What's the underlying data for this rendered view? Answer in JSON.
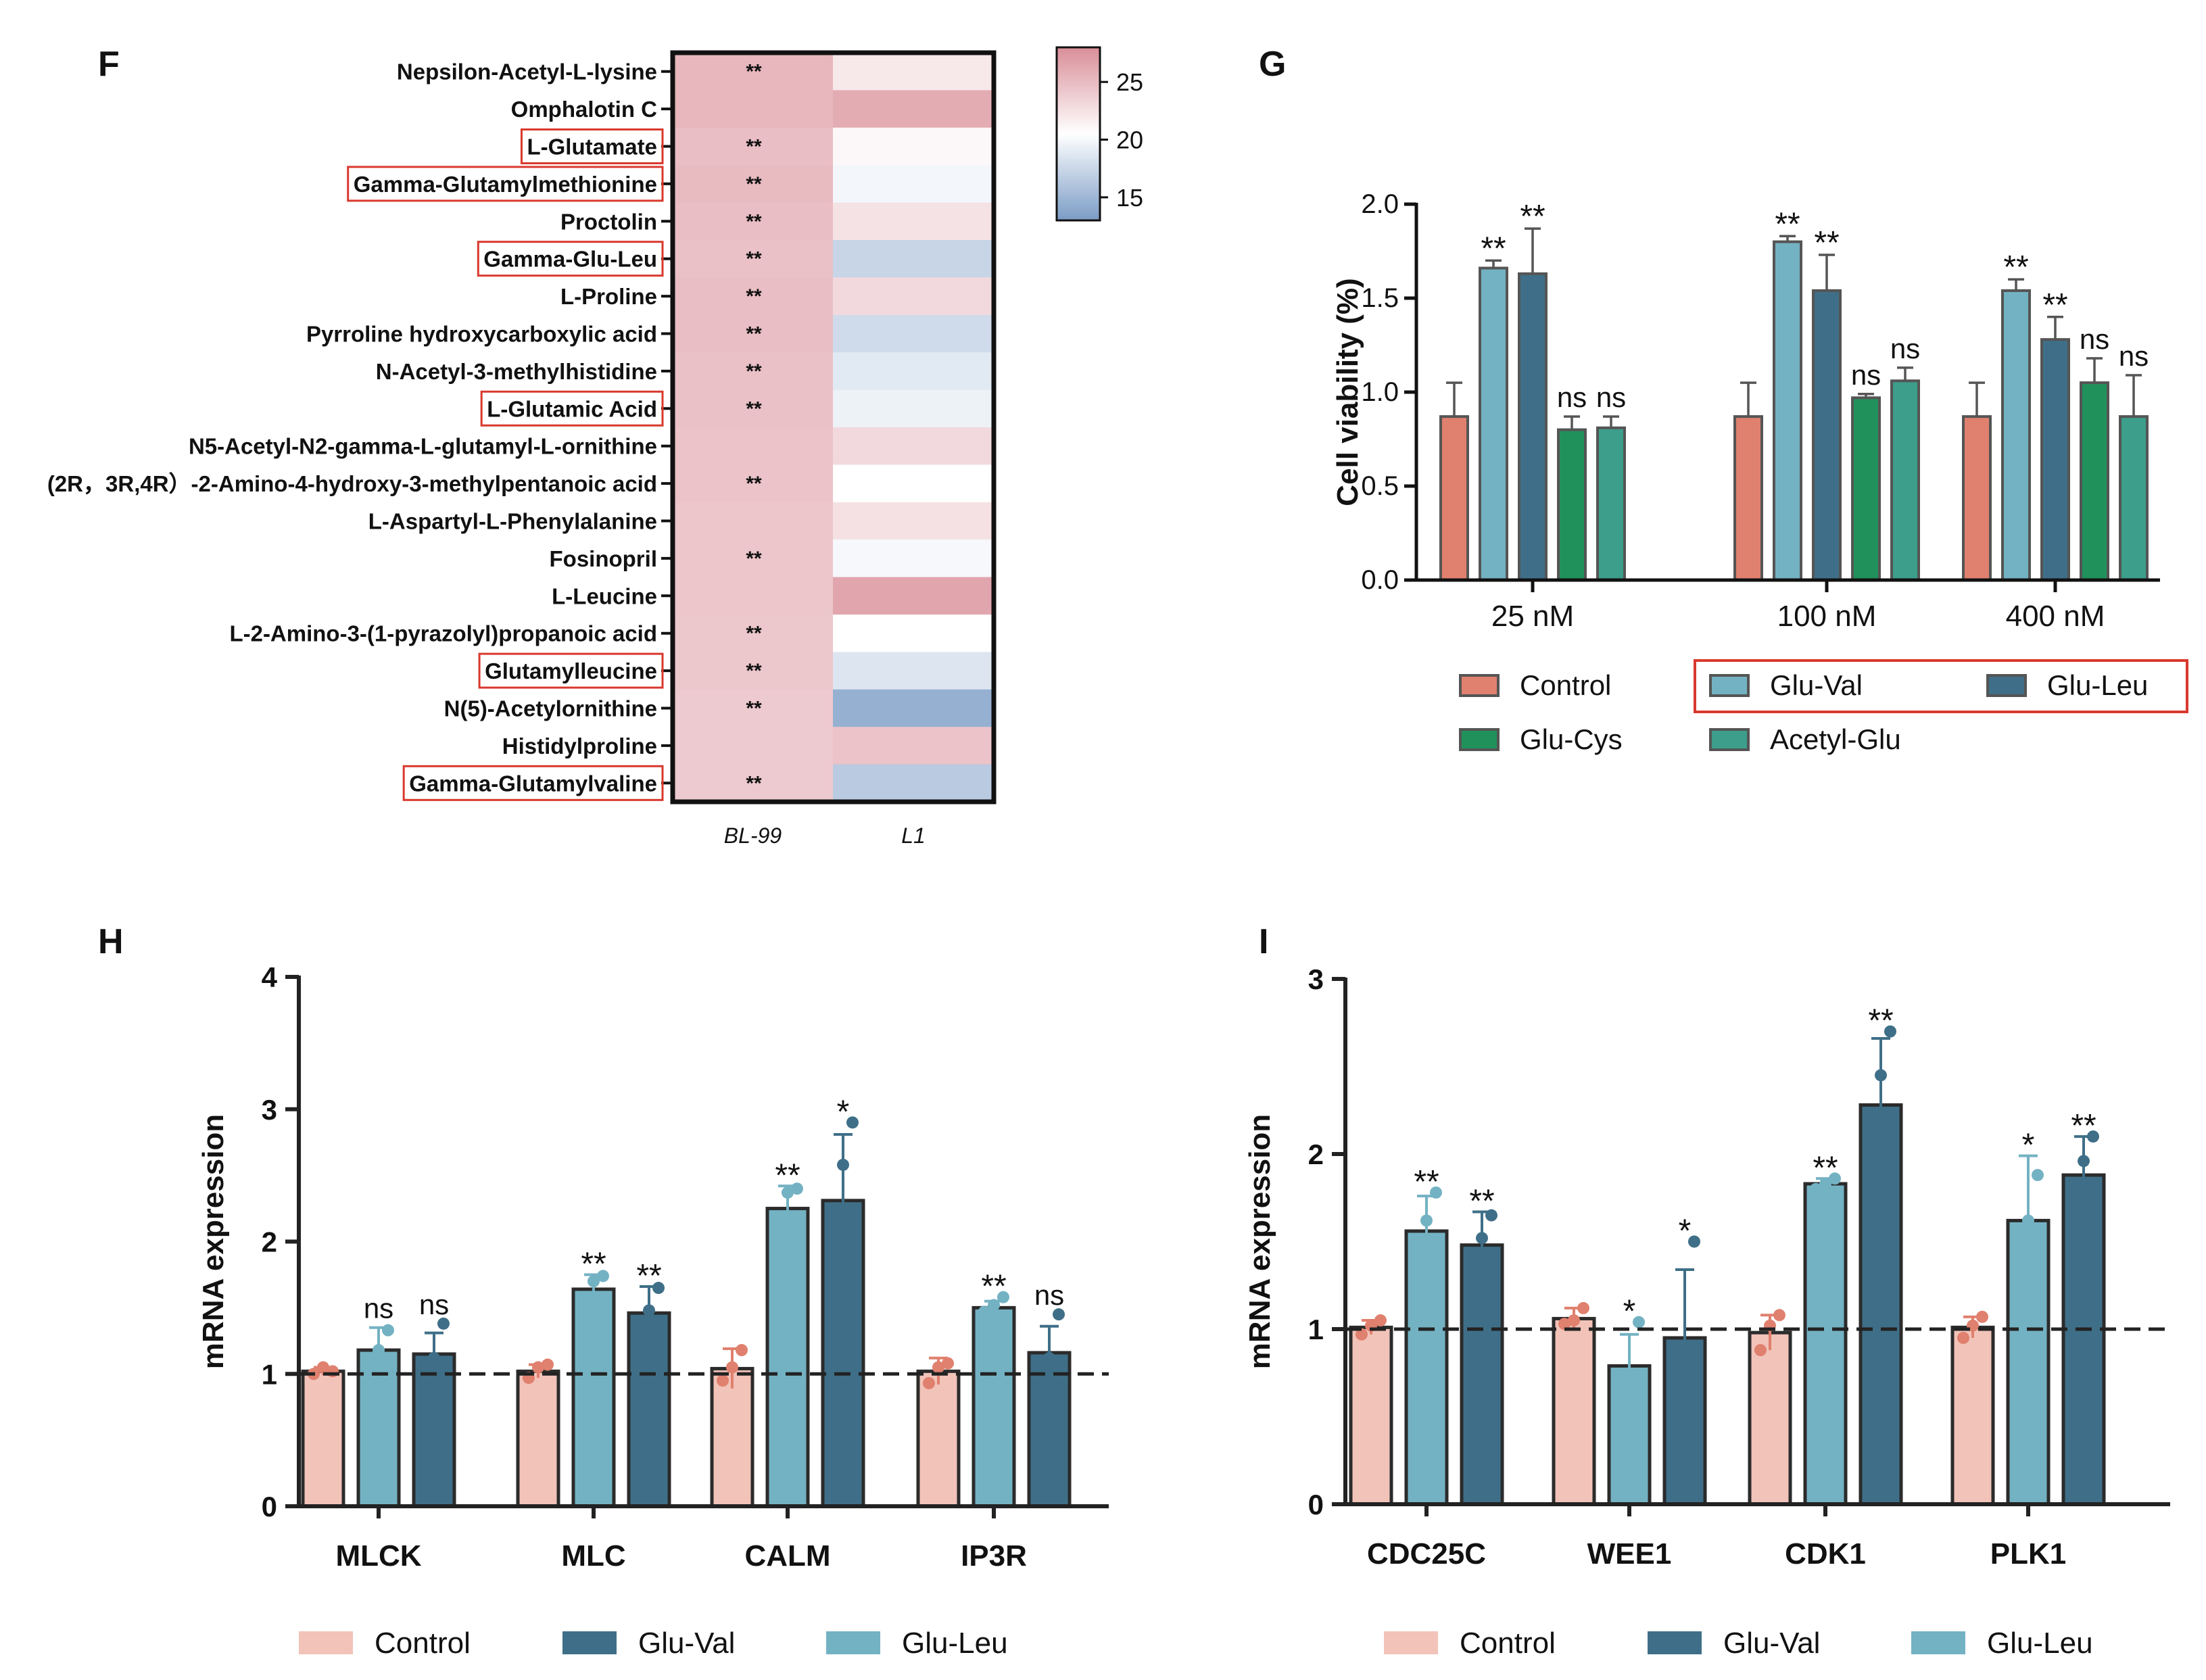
{
  "panel_letters": {
    "F": "F",
    "G": "G",
    "H": "H",
    "I": "I"
  },
  "chart_data": [
    {
      "id": "F",
      "type": "heatmap",
      "title": "",
      "rows": [
        "Nepsilon-Acetyl-L-lysine",
        "Omphalotin C",
        "L-Glutamate",
        "Gamma-Glutamylmethionine",
        "Proctolin",
        "Gamma-Glu-Leu",
        "L-Proline",
        "Pyrroline hydroxycarboxylic acid",
        "N-Acetyl-3-methylhistidine",
        "L-Glutamic Acid",
        "N5-Acetyl-N2-gamma-L-glutamyl-L-ornithine",
        "(2R，3R,4R）-2-Amino-4-hydroxy-3-methylpentanoic acid",
        "L-Aspartyl-L-Phenylalanine",
        "Fosinopril",
        "L-Leucine",
        "L-2-Amino-3-(1-pyrazolyl)propanoic acid",
        "Glutamylleucine",
        "N(5)-Acetylornithine",
        "Histidylproline",
        "Gamma-Glutamylvaline"
      ],
      "highlighted_rows": [
        "L-Glutamate",
        "Gamma-Glutamylmethionine",
        "Gamma-Glu-Leu",
        "L-Glutamic Acid",
        "Glutamylleucine",
        "Gamma-Glutamylvaline"
      ],
      "columns": [
        "BL-99",
        "L1"
      ],
      "values": [
        [
          25.3,
          22.0
        ],
        [
          25.3,
          26.0
        ],
        [
          24.8,
          21.0
        ],
        [
          25.0,
          19.8
        ],
        [
          24.8,
          22.4
        ],
        [
          24.6,
          17.3
        ],
        [
          24.8,
          23.0
        ],
        [
          24.8,
          17.8
        ],
        [
          24.6,
          18.8
        ],
        [
          24.6,
          19.5
        ],
        [
          24.5,
          23.0
        ],
        [
          24.5,
          20.5
        ],
        [
          24.3,
          22.5
        ],
        [
          24.3,
          20.0
        ],
        [
          24.3,
          26.5
        ],
        [
          24.2,
          20.5
        ],
        [
          24.2,
          18.5
        ],
        [
          24.0,
          14.5
        ],
        [
          24.0,
          24.5
        ],
        [
          24.0,
          16.5
        ]
      ],
      "significance": [
        "**",
        "",
        "**",
        "**",
        "**",
        "**",
        "**",
        "**",
        "**",
        "**",
        "",
        "**",
        "",
        "**",
        "",
        "**",
        "**",
        "**",
        "",
        "**"
      ],
      "colorbar": {
        "min": 13,
        "max": 28,
        "ticks": [
          15,
          20,
          25
        ],
        "low_color": "#7b9cc6",
        "mid_color": "#ffffff",
        "high_color": "#d98e98"
      }
    },
    {
      "id": "G",
      "type": "bar",
      "categories": [
        "25 nM",
        "100 nM",
        "400 nM"
      ],
      "series": [
        {
          "name": "Control",
          "color": "#e0806e",
          "values": [
            0.87,
            0.87,
            0.87
          ],
          "errors": [
            0.18,
            0.18,
            0.18
          ],
          "labels": [
            "",
            "",
            ""
          ]
        },
        {
          "name": "Glu-Val",
          "color": "#73b2c3",
          "values": [
            1.66,
            1.8,
            1.54
          ],
          "errors": [
            0.04,
            0.03,
            0.06
          ],
          "labels": [
            "**",
            "**",
            "**"
          ]
        },
        {
          "name": "Glu-Leu",
          "color": "#3f6f88",
          "values": [
            1.63,
            1.54,
            1.28
          ],
          "errors": [
            0.24,
            0.19,
            0.12
          ],
          "labels": [
            "**",
            "**",
            "**"
          ]
        },
        {
          "name": "Glu-Cys",
          "color": "#21915b",
          "values": [
            0.8,
            0.97,
            1.05
          ],
          "errors": [
            0.07,
            0.02,
            0.13
          ],
          "labels": [
            "ns",
            "ns",
            "ns"
          ]
        },
        {
          "name": "Acetyl-Glu",
          "color": "#3c9e8b",
          "values": [
            0.81,
            1.06,
            0.87
          ],
          "errors": [
            0.06,
            0.07,
            0.22
          ],
          "labels": [
            "ns",
            "ns",
            "ns"
          ]
        }
      ],
      "xlabel": "",
      "ylabel": "Cell viability (%)",
      "ylim": [
        0,
        2.0
      ],
      "yticks": [
        "0.0",
        "0.5",
        "1.0",
        "1.5",
        "2.0"
      ],
      "legend_highlighted": [
        "Glu-Val",
        "Glu-Leu"
      ]
    },
    {
      "id": "H",
      "type": "bar",
      "categories": [
        "MLCK",
        "MLC",
        "CALM",
        "IP3R"
      ],
      "series": [
        {
          "name": "Control",
          "color": "#f2c3b9",
          "values": [
            1.02,
            1.02,
            1.04,
            1.02
          ],
          "errors": [
            0.03,
            0.05,
            0.15,
            0.1
          ],
          "points": [
            [
              1.0,
              1.05,
              1.02
            ],
            [
              0.97,
              1.05,
              1.07
            ],
            [
              0.95,
              1.05,
              1.18
            ],
            [
              0.93,
              1.05,
              1.08
            ]
          ],
          "labels": [
            "",
            "",
            "",
            ""
          ]
        },
        {
          "name": "Glu-Val",
          "color": "#3f6f88",
          "values": [
            1.15,
            1.46,
            2.31,
            1.16
          ],
          "errors": [
            0.16,
            0.2,
            0.5,
            0.2
          ],
          "points": [
            [
              1.05,
              1.12,
              1.38
            ],
            [
              1.28,
              1.48,
              1.65
            ],
            [
              1.97,
              2.58,
              2.9
            ],
            [
              1.05,
              1.12,
              1.45
            ]
          ],
          "labels": [
            "ns",
            "**",
            "*",
            "ns"
          ]
        },
        {
          "name": "Glu-Leu",
          "color": "#73b2c3",
          "values": [
            1.18,
            1.64,
            2.25,
            1.5
          ],
          "errors": [
            0.17,
            0.11,
            0.17,
            0.05
          ],
          "points": [
            [
              1.1,
              1.18,
              1.33
            ],
            [
              1.53,
              1.7,
              1.74
            ],
            [
              2.1,
              2.37,
              2.4
            ],
            [
              1.47,
              1.52,
              1.58
            ]
          ],
          "labels": [
            "ns",
            "**",
            "**",
            "**"
          ]
        }
      ],
      "xlabel": "",
      "ylabel": "mRNA expression",
      "ylim": [
        0,
        4
      ],
      "yticks": [
        "0",
        "1",
        "2",
        "3",
        "4"
      ],
      "reference_line": 1
    },
    {
      "id": "I",
      "type": "bar",
      "categories": [
        "CDC25C",
        "WEE1",
        "CDK1",
        "PLK1"
      ],
      "series": [
        {
          "name": "Control",
          "color": "#f2c3b9",
          "values": [
            1.01,
            1.06,
            0.98,
            1.01
          ],
          "errors": [
            0.04,
            0.06,
            0.1,
            0.06
          ],
          "points": [
            [
              0.97,
              1.02,
              1.05
            ],
            [
              1.03,
              1.05,
              1.12
            ],
            [
              0.88,
              1.02,
              1.08
            ],
            [
              0.95,
              1.02,
              1.07
            ]
          ],
          "labels": [
            "",
            "",
            "",
            ""
          ]
        },
        {
          "name": "Glu-Val",
          "color": "#3f6f88",
          "values": [
            1.48,
            0.95,
            2.28,
            1.88
          ],
          "errors": [
            0.19,
            0.39,
            0.38,
            0.22
          ],
          "points": [
            [
              1.28,
              1.52,
              1.65
            ],
            [
              0.55,
              0.78,
              1.5
            ],
            [
              1.88,
              2.45,
              2.7
            ],
            [
              1.78,
              1.96,
              2.1
            ]
          ],
          "labels": [
            "**",
            "*",
            "**",
            "**"
          ]
        },
        {
          "name": "Glu-Leu",
          "color": "#73b2c3",
          "values": [
            1.56,
            0.79,
            1.83,
            1.62
          ],
          "errors": [
            0.2,
            0.18,
            0.03,
            0.37
          ],
          "points": [
            [
              1.35,
              1.62,
              1.78
            ],
            [
              0.62,
              0.72,
              1.04
            ],
            [
              1.8,
              1.83,
              1.86
            ],
            [
              1.3,
              1.62,
              1.88
            ]
          ],
          "labels": [
            "**",
            "*",
            "**",
            "*"
          ]
        }
      ],
      "xlabel": "",
      "ylabel": "mRNA expression",
      "ylim": [
        0,
        3
      ],
      "yticks": [
        "0",
        "1",
        "2",
        "3"
      ],
      "reference_line": 1
    }
  ]
}
